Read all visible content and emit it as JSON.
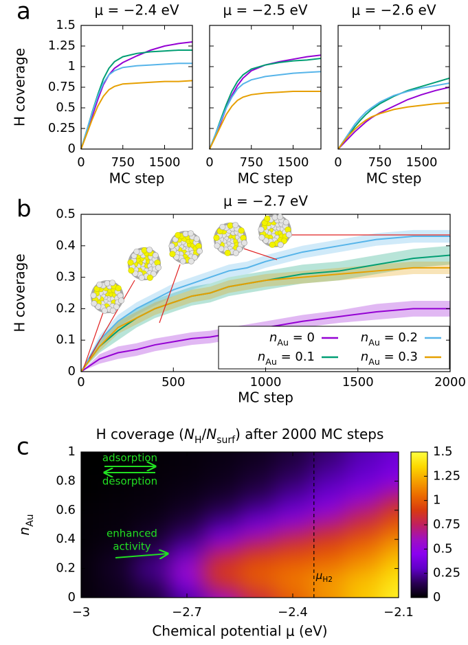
{
  "panel_labels": [
    "a",
    "b",
    "c"
  ],
  "chart_data": [
    {
      "type": "line",
      "title": "μ = −2.4 eV",
      "xlabel": "MC step",
      "ylabel": "H coverage",
      "x": [
        0,
        100,
        200,
        300,
        400,
        500,
        600,
        750,
        1000,
        1250,
        1500,
        1750,
        2000
      ],
      "xlim": [
        0,
        2000
      ],
      "xticks": [
        0,
        750,
        1500
      ],
      "ylim": [
        0,
        1.5
      ],
      "yticks": [
        0,
        0.25,
        0.5,
        0.75,
        1,
        1.25,
        1.5
      ],
      "series": [
        {
          "color": "#9400d3",
          "values": [
            0,
            0.2,
            0.4,
            0.6,
            0.78,
            0.9,
            0.98,
            1.05,
            1.13,
            1.2,
            1.25,
            1.28,
            1.3
          ]
        },
        {
          "color": "#009e73",
          "values": [
            0,
            0.22,
            0.45,
            0.66,
            0.85,
            0.98,
            1.06,
            1.12,
            1.16,
            1.18,
            1.19,
            1.2,
            1.2
          ]
        },
        {
          "color": "#56b4e9",
          "values": [
            0,
            0.22,
            0.44,
            0.64,
            0.8,
            0.9,
            0.95,
            0.99,
            1.01,
            1.02,
            1.03,
            1.04,
            1.04
          ]
        },
        {
          "color": "#e69f00",
          "values": [
            0,
            0.18,
            0.36,
            0.52,
            0.64,
            0.72,
            0.76,
            0.79,
            0.8,
            0.81,
            0.82,
            0.82,
            0.83
          ]
        }
      ]
    },
    {
      "type": "line",
      "title": "μ = −2.5 eV",
      "xlabel": "MC step",
      "x": [
        0,
        100,
        200,
        300,
        400,
        500,
        600,
        750,
        1000,
        1250,
        1500,
        1750,
        2000
      ],
      "xlim": [
        0,
        2000
      ],
      "xticks": [
        0,
        750,
        1500
      ],
      "ylim": [
        0,
        1.5
      ],
      "yticks": [
        0,
        0.25,
        0.5,
        0.75,
        1,
        1.25,
        1.5
      ],
      "ytick_labels": false,
      "series": [
        {
          "color": "#9400d3",
          "values": [
            0,
            0.15,
            0.32,
            0.5,
            0.65,
            0.77,
            0.86,
            0.95,
            1.02,
            1.06,
            1.09,
            1.12,
            1.14
          ]
        },
        {
          "color": "#009e73",
          "values": [
            0,
            0.17,
            0.36,
            0.54,
            0.7,
            0.82,
            0.9,
            0.97,
            1.02,
            1.05,
            1.07,
            1.08,
            1.1
          ]
        },
        {
          "color": "#56b4e9",
          "values": [
            0,
            0.17,
            0.34,
            0.5,
            0.63,
            0.73,
            0.79,
            0.84,
            0.88,
            0.9,
            0.92,
            0.93,
            0.94
          ]
        },
        {
          "color": "#e69f00",
          "values": [
            0,
            0.14,
            0.28,
            0.42,
            0.52,
            0.59,
            0.63,
            0.66,
            0.68,
            0.69,
            0.7,
            0.7,
            0.7
          ]
        }
      ]
    },
    {
      "type": "line",
      "title": "μ = −2.6 eV",
      "xlabel": "MC step",
      "x": [
        0,
        100,
        200,
        300,
        400,
        500,
        600,
        750,
        1000,
        1250,
        1500,
        1750,
        2000
      ],
      "xlim": [
        0,
        2000
      ],
      "xticks": [
        0,
        750,
        1500
      ],
      "ylim": [
        0,
        1.5
      ],
      "yticks": [
        0,
        0.25,
        0.5,
        0.75,
        1,
        1.25,
        1.5
      ],
      "ytick_labels": false,
      "series": [
        {
          "color": "#9400d3",
          "values": [
            0,
            0.07,
            0.14,
            0.21,
            0.27,
            0.33,
            0.38,
            0.44,
            0.52,
            0.6,
            0.66,
            0.71,
            0.75
          ]
        },
        {
          "color": "#009e73",
          "values": [
            0,
            0.09,
            0.18,
            0.27,
            0.35,
            0.42,
            0.48,
            0.55,
            0.64,
            0.71,
            0.76,
            0.81,
            0.86
          ]
        },
        {
          "color": "#56b4e9",
          "values": [
            0,
            0.1,
            0.2,
            0.3,
            0.38,
            0.45,
            0.5,
            0.57,
            0.65,
            0.7,
            0.74,
            0.77,
            0.8
          ]
        },
        {
          "color": "#e69f00",
          "values": [
            0,
            0.09,
            0.17,
            0.24,
            0.3,
            0.35,
            0.39,
            0.43,
            0.48,
            0.51,
            0.53,
            0.55,
            0.56
          ]
        }
      ]
    },
    {
      "type": "line",
      "title": "μ = −2.7 eV",
      "xlabel": "MC step",
      "ylabel": "H coverage",
      "x": [
        0,
        100,
        200,
        300,
        400,
        500,
        600,
        700,
        800,
        900,
        1000,
        1200,
        1400,
        1600,
        1800,
        2000
      ],
      "xlim": [
        0,
        2000
      ],
      "xticks": [
        0,
        500,
        1000,
        1500,
        2000
      ],
      "ylim": [
        0,
        0.5
      ],
      "yticks": [
        0,
        0.1,
        0.2,
        0.3,
        0.4,
        0.5
      ],
      "legend": "lower right",
      "series": [
        {
          "name": "nAu = 0",
          "color": "#9400d3",
          "values": [
            0,
            0.04,
            0.06,
            0.07,
            0.085,
            0.095,
            0.105,
            0.11,
            0.12,
            0.13,
            0.14,
            0.16,
            0.175,
            0.19,
            0.2,
            0.2
          ],
          "errors": [
            0,
            0.015,
            0.02,
            0.02,
            0.02,
            0.02,
            0.02,
            0.02,
            0.02,
            0.02,
            0.02,
            0.02,
            0.02,
            0.025,
            0.025,
            0.025
          ]
        },
        {
          "name": "nAu = 0.1",
          "color": "#009e73",
          "values": [
            0,
            0.08,
            0.13,
            0.17,
            0.2,
            0.22,
            0.24,
            0.25,
            0.27,
            0.28,
            0.29,
            0.31,
            0.32,
            0.34,
            0.36,
            0.37
          ],
          "errors": [
            0,
            0.02,
            0.03,
            0.03,
            0.03,
            0.03,
            0.03,
            0.03,
            0.03,
            0.03,
            0.03,
            0.03,
            0.03,
            0.03,
            0.03,
            0.03
          ]
        },
        {
          "name": "nAu = 0.2",
          "color": "#56b4e9",
          "values": [
            0,
            0.1,
            0.16,
            0.2,
            0.23,
            0.26,
            0.28,
            0.3,
            0.32,
            0.33,
            0.35,
            0.38,
            0.4,
            0.42,
            0.43,
            0.43
          ],
          "errors": [
            0,
            0.015,
            0.02,
            0.02,
            0.02,
            0.02,
            0.02,
            0.02,
            0.02,
            0.02,
            0.02,
            0.02,
            0.02,
            0.02,
            0.02,
            0.02
          ]
        },
        {
          "name": "nAu = 0.3",
          "color": "#e69f00",
          "values": [
            0,
            0.08,
            0.14,
            0.17,
            0.2,
            0.22,
            0.24,
            0.25,
            0.27,
            0.28,
            0.29,
            0.3,
            0.31,
            0.32,
            0.33,
            0.33
          ],
          "errors": [
            0,
            0.015,
            0.02,
            0.02,
            0.02,
            0.02,
            0.02,
            0.02,
            0.02,
            0.02,
            0.02,
            0.02,
            0.02,
            0.02,
            0.02,
            0.02
          ]
        }
      ]
    },
    {
      "type": "heatmap",
      "title": "H coverage (NH/Nsurf) after 2000 MC steps",
      "xlabel": "Chemical potential μ (eV)",
      "ylabel": "nAu",
      "x": [
        -3,
        -2.9,
        -2.8,
        -2.7,
        -2.6,
        -2.5,
        -2.4,
        -2.3,
        -2.2,
        -2.1
      ],
      "y": [
        0,
        0.1,
        0.2,
        0.3,
        0.4,
        0.5,
        0.6,
        0.7,
        0.8,
        0.9,
        1
      ],
      "z": [
        [
          0.02,
          0.05,
          0.1,
          0.25,
          0.55,
          0.8,
          1.0,
          1.15,
          1.3,
          1.45
        ],
        [
          0.02,
          0.05,
          0.15,
          0.45,
          0.85,
          1.0,
          1.1,
          1.2,
          1.3,
          1.4
        ],
        [
          0.02,
          0.08,
          0.25,
          0.6,
          0.9,
          1.0,
          1.05,
          1.1,
          1.2,
          1.35
        ],
        [
          0.02,
          0.05,
          0.15,
          0.35,
          0.75,
          0.9,
          0.95,
          1.0,
          1.1,
          1.25
        ],
        [
          0.01,
          0.03,
          0.08,
          0.2,
          0.45,
          0.65,
          0.8,
          0.9,
          1.0,
          1.15
        ],
        [
          0.01,
          0.02,
          0.05,
          0.12,
          0.25,
          0.4,
          0.55,
          0.7,
          0.85,
          1.0
        ],
        [
          0.01,
          0.02,
          0.03,
          0.07,
          0.15,
          0.25,
          0.35,
          0.5,
          0.7,
          0.9
        ],
        [
          0,
          0.01,
          0.02,
          0.04,
          0.08,
          0.15,
          0.25,
          0.35,
          0.5,
          0.7
        ],
        [
          0,
          0.01,
          0.02,
          0.03,
          0.05,
          0.1,
          0.18,
          0.28,
          0.35,
          0.45
        ],
        [
          0,
          0,
          0.01,
          0.02,
          0.04,
          0.07,
          0.13,
          0.22,
          0.3,
          0.38
        ],
        [
          0,
          0,
          0.01,
          0.02,
          0.03,
          0.05,
          0.1,
          0.18,
          0.27,
          0.35
        ]
      ],
      "xlim": [
        -3,
        -2.1
      ],
      "xticks": [
        {
          "value": -3,
          "label": "−3"
        },
        {
          "value": -2.7,
          "label": "−2.7"
        },
        {
          "value": -2.4,
          "label": "−2.4"
        },
        {
          "value": -2.1,
          "label": "−2.1"
        }
      ],
      "ylim": [
        0,
        1
      ],
      "yticks": [
        0,
        0.2,
        0.4,
        0.6,
        0.8,
        1
      ],
      "cblim": [
        0,
        1.5
      ],
      "cbticks": [
        0,
        0.25,
        0.5,
        0.75,
        1,
        1.25,
        1.5
      ],
      "colormap": [
        "#000000",
        "#2a0055",
        "#6000c8",
        "#8a00f0",
        "#a010c0",
        "#c02060",
        "#d83a10",
        "#ec6a00",
        "#f5a000",
        "#fcd800",
        "#ffff40"
      ],
      "vline": {
        "x": -2.34,
        "label": "μH2"
      },
      "annotations": [
        "adsorption",
        "desorption",
        "enhanced",
        "activity"
      ]
    }
  ]
}
